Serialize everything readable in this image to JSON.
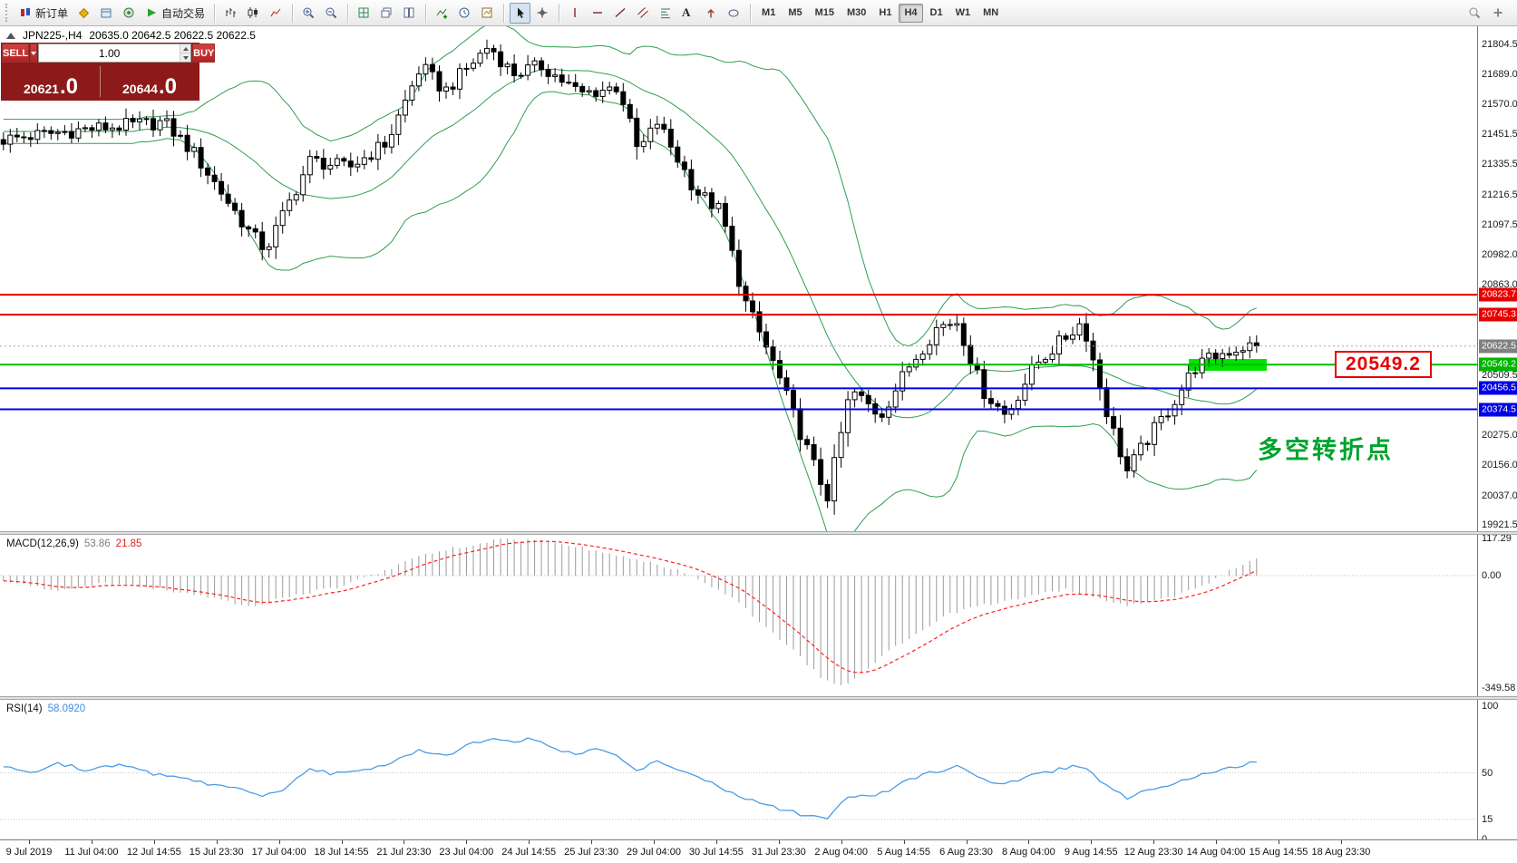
{
  "toolbar": {
    "new_order_label": "新订单",
    "autotrading_label": "自动交易",
    "text_tool_label": "A",
    "timeframes": [
      "M1",
      "M5",
      "M15",
      "M30",
      "H1",
      "H4",
      "D1",
      "W1",
      "MN"
    ],
    "active_timeframe": "H4"
  },
  "trade_panel": {
    "sell_label": "SELL",
    "buy_label": "BUY",
    "volume": "1.00",
    "sell_price": {
      "base": "20621",
      "big": ".0"
    },
    "buy_price": {
      "base": "20644",
      "big": ".0"
    }
  },
  "chart_data": [
    {
      "type": "candlestick",
      "title": "JPN225-,H4",
      "quote": "20635.0 20642.5 20622.5 20622.5",
      "ylim": [
        19921.5,
        21804.5
      ],
      "y_ticks": [
        21804.5,
        21689.0,
        21570.0,
        21451.5,
        21335.5,
        21216.5,
        21097.5,
        20982.0,
        20863.0,
        20509.5,
        20275.0,
        20156.0,
        20037.0,
        19921.5
      ],
      "num_bars": 185,
      "bars_end_frac": 0.853,
      "close_path": [
        [
          0,
          21430
        ],
        [
          0.055,
          21470
        ],
        [
          0.111,
          21500
        ],
        [
          0.131,
          21380
        ],
        [
          0.17,
          21060
        ],
        [
          0.18,
          21000
        ],
        [
          0.21,
          21350
        ],
        [
          0.236,
          21320
        ],
        [
          0.262,
          21420
        ],
        [
          0.285,
          21720
        ],
        [
          0.301,
          21620
        ],
        [
          0.331,
          21800
        ],
        [
          0.347,
          21690
        ],
        [
          0.367,
          21720
        ],
        [
          0.393,
          21610
        ],
        [
          0.419,
          21640
        ],
        [
          0.432,
          21380
        ],
        [
          0.445,
          21500
        ],
        [
          0.471,
          21230
        ],
        [
          0.488,
          21150
        ],
        [
          0.504,
          20800
        ],
        [
          0.524,
          20550
        ],
        [
          0.544,
          20250
        ],
        [
          0.56,
          20030
        ],
        [
          0.576,
          20450
        ],
        [
          0.596,
          20350
        ],
        [
          0.616,
          20550
        ],
        [
          0.635,
          20700
        ],
        [
          0.648,
          20720
        ],
        [
          0.665,
          20450
        ],
        [
          0.681,
          20350
        ],
        [
          0.701,
          20550
        ],
        [
          0.72,
          20650
        ],
        [
          0.733,
          20720
        ],
        [
          0.75,
          20350
        ],
        [
          0.763,
          20130
        ],
        [
          0.776,
          20250
        ],
        [
          0.792,
          20380
        ],
        [
          0.809,
          20540
        ],
        [
          0.825,
          20590
        ],
        [
          0.842,
          20620
        ],
        [
          0.853,
          20622.5
        ]
      ],
      "bollinger": {
        "period": 20,
        "deviation": 2,
        "color": "#2f9e4f"
      },
      "bid_price": 20622.5,
      "levels": [
        {
          "price": 20823.7,
          "color": "#e60000",
          "width": 2
        },
        {
          "price": 20745.3,
          "color": "#e60000",
          "width": 2
        },
        {
          "price": 20549.2,
          "color": "#00bb00",
          "width": 2
        },
        {
          "price": 20456.5,
          "color": "#0000f0",
          "width": 2
        },
        {
          "price": 20374.5,
          "color": "#0000f0",
          "width": 2
        }
      ],
      "badges": [
        {
          "text": "20823.7",
          "price": 20823.7,
          "bg": "#e60000"
        },
        {
          "text": "20745.3",
          "price": 20745.3,
          "bg": "#e60000"
        },
        {
          "text": "20622.5",
          "price": 20622.5,
          "bg": "#808080"
        },
        {
          "text": "20549.2",
          "price": 20549.2,
          "bg": "#00b400"
        },
        {
          "text": "20456.5",
          "price": 20456.5,
          "bg": "#0000e6"
        },
        {
          "text": "20374.5",
          "price": 20374.5,
          "bg": "#0000e6"
        }
      ],
      "highlight": {
        "x1": 0.805,
        "x2": 0.858,
        "price": 20549.2,
        "height": 13,
        "color": "#00e400"
      },
      "callout": {
        "text": "20549.2",
        "x": 0.9036,
        "price": 20549.2,
        "color": "#e80000"
      },
      "note": {
        "text": "多空转折点",
        "x": 0.8515,
        "price": 20225,
        "color": "#00a32e"
      },
      "time_labels": [
        "9 Jul 2019",
        "11 Jul 04:00",
        "12 Jul 14:55",
        "15 Jul 23:30",
        "17 Jul 04:00",
        "18 Jul 14:55",
        "21 Jul 23:30",
        "23 Jul 04:00",
        "24 Jul 14:55",
        "25 Jul 23:30",
        "29 Jul 04:00",
        "30 Jul 14:55",
        "31 Jul 23:30",
        "2 Aug 04:00",
        "5 Aug 14:55",
        "6 Aug 23:30",
        "8 Aug 04:00",
        "9 Aug 14:55",
        "12 Aug 23:30",
        "14 Aug 04:00",
        "15 Aug 14:55",
        "18 Aug 23:30"
      ]
    },
    {
      "type": "macd",
      "name": "MACD(12,26,9)",
      "value_main": "53.86",
      "value_signal": "21.85",
      "axis_ticks": [
        {
          "v": 117.29,
          "label": "117.29"
        },
        {
          "v": 0,
          "label": "0.00"
        },
        {
          "v": -349.58,
          "label": "-349.58"
        }
      ],
      "histogram_color": "#9b9b9b",
      "signal_color": "#ff2020",
      "macd_path": [
        [
          0,
          -18
        ],
        [
          0.04,
          -45
        ],
        [
          0.07,
          -25
        ],
        [
          0.1,
          -35
        ],
        [
          0.13,
          -60
        ],
        [
          0.17,
          -95
        ],
        [
          0.2,
          -60
        ],
        [
          0.23,
          -35
        ],
        [
          0.26,
          15
        ],
        [
          0.285,
          62
        ],
        [
          0.31,
          88
        ],
        [
          0.33,
          106
        ],
        [
          0.345,
          116
        ],
        [
          0.36,
          110
        ],
        [
          0.38,
          96
        ],
        [
          0.4,
          82
        ],
        [
          0.42,
          62
        ],
        [
          0.44,
          40
        ],
        [
          0.46,
          15
        ],
        [
          0.475,
          -12
        ],
        [
          0.5,
          -85
        ],
        [
          0.52,
          -165
        ],
        [
          0.54,
          -245
        ],
        [
          0.555,
          -315
        ],
        [
          0.57,
          -345
        ],
        [
          0.585,
          -300
        ],
        [
          0.6,
          -240
        ],
        [
          0.62,
          -180
        ],
        [
          0.64,
          -125
        ],
        [
          0.66,
          -95
        ],
        [
          0.68,
          -82
        ],
        [
          0.7,
          -60
        ],
        [
          0.72,
          -42
        ],
        [
          0.74,
          -62
        ],
        [
          0.76,
          -92
        ],
        [
          0.78,
          -80
        ],
        [
          0.8,
          -58
        ],
        [
          0.82,
          -18
        ],
        [
          0.835,
          22
        ],
        [
          0.853,
          54
        ]
      ]
    },
    {
      "type": "rsi",
      "name": "RSI(14)",
      "value": "58.0920",
      "line_color": "#4a9ce8",
      "axis_ticks": [
        {
          "v": 100,
          "label": "100"
        },
        {
          "v": 50,
          "label": "50"
        },
        {
          "v": 15,
          "label": "15"
        },
        {
          "v": 0,
          "label": "0"
        }
      ],
      "levels": [
        50,
        15
      ],
      "line_path": [
        [
          0,
          55
        ],
        [
          0.02,
          50
        ],
        [
          0.04,
          57
        ],
        [
          0.06,
          52
        ],
        [
          0.08,
          56
        ],
        [
          0.1,
          50
        ],
        [
          0.12,
          47
        ],
        [
          0.14,
          42
        ],
        [
          0.16,
          38
        ],
        [
          0.175,
          32
        ],
        [
          0.19,
          36
        ],
        [
          0.21,
          52
        ],
        [
          0.23,
          49
        ],
        [
          0.25,
          53
        ],
        [
          0.27,
          60
        ],
        [
          0.285,
          67
        ],
        [
          0.3,
          62
        ],
        [
          0.315,
          70
        ],
        [
          0.33,
          76
        ],
        [
          0.345,
          74
        ],
        [
          0.36,
          75
        ],
        [
          0.375,
          68
        ],
        [
          0.39,
          64
        ],
        [
          0.405,
          68
        ],
        [
          0.42,
          62
        ],
        [
          0.432,
          52
        ],
        [
          0.445,
          58
        ],
        [
          0.46,
          51
        ],
        [
          0.475,
          46
        ],
        [
          0.49,
          38
        ],
        [
          0.51,
          29
        ],
        [
          0.53,
          22
        ],
        [
          0.55,
          17
        ],
        [
          0.56,
          15
        ],
        [
          0.575,
          34
        ],
        [
          0.59,
          31
        ],
        [
          0.61,
          42
        ],
        [
          0.63,
          50
        ],
        [
          0.648,
          55
        ],
        [
          0.663,
          46
        ],
        [
          0.68,
          41
        ],
        [
          0.7,
          49
        ],
        [
          0.715,
          52
        ],
        [
          0.733,
          56
        ],
        [
          0.75,
          39
        ],
        [
          0.763,
          31
        ],
        [
          0.776,
          36
        ],
        [
          0.79,
          41
        ],
        [
          0.81,
          48
        ],
        [
          0.825,
          52
        ],
        [
          0.84,
          56
        ],
        [
          0.853,
          58.1
        ]
      ]
    }
  ]
}
